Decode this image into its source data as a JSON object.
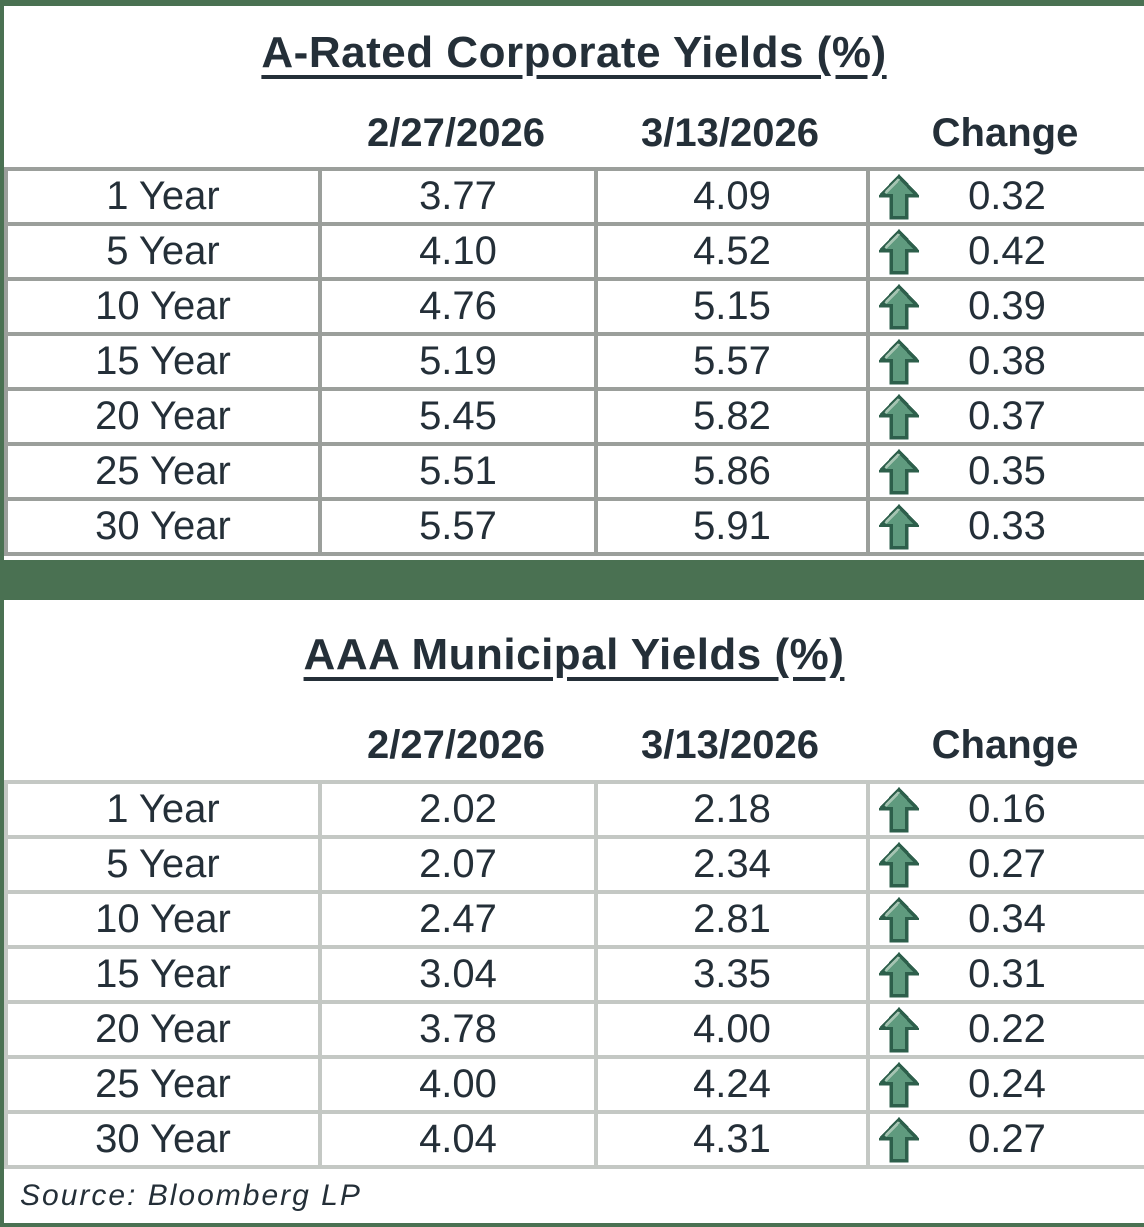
{
  "colors": {
    "accent_green": "#4a7152",
    "arrow_fill": "#5f9a7e",
    "arrow_outline": "#2d5f4b",
    "arrow_highlight": "#a5c4b2",
    "text": "#242f38",
    "table1_grid": "#9b9f9b",
    "table2_grid": "#c4c8c4"
  },
  "tables": [
    {
      "id": "corporate",
      "title": "A-Rated Corporate Yields (%)",
      "col_headers": [
        "2/27/2026",
        "3/13/2026",
        "Change"
      ],
      "rows": [
        {
          "label": "1 Year",
          "prev": "3.77",
          "curr": "4.09",
          "change": "0.32",
          "direction": "up"
        },
        {
          "label": "5 Year",
          "prev": "4.10",
          "curr": "4.52",
          "change": "0.42",
          "direction": "up"
        },
        {
          "label": "10 Year",
          "prev": "4.76",
          "curr": "5.15",
          "change": "0.39",
          "direction": "up"
        },
        {
          "label": "15 Year",
          "prev": "5.19",
          "curr": "5.57",
          "change": "0.38",
          "direction": "up"
        },
        {
          "label": "20 Year",
          "prev": "5.45",
          "curr": "5.82",
          "change": "0.37",
          "direction": "up"
        },
        {
          "label": "25 Year",
          "prev": "5.51",
          "curr": "5.86",
          "change": "0.35",
          "direction": "up"
        },
        {
          "label": "30 Year",
          "prev": "5.57",
          "curr": "5.91",
          "change": "0.33",
          "direction": "up"
        }
      ]
    },
    {
      "id": "municipal",
      "title": "AAA Municipal Yields (%)",
      "col_headers": [
        "2/27/2026",
        "3/13/2026",
        "Change"
      ],
      "rows": [
        {
          "label": "1 Year",
          "prev": "2.02",
          "curr": "2.18",
          "change": "0.16",
          "direction": "up"
        },
        {
          "label": "5 Year",
          "prev": "2.07",
          "curr": "2.34",
          "change": "0.27",
          "direction": "up"
        },
        {
          "label": "10 Year",
          "prev": "2.47",
          "curr": "2.81",
          "change": "0.34",
          "direction": "up"
        },
        {
          "label": "15 Year",
          "prev": "3.04",
          "curr": "3.35",
          "change": "0.31",
          "direction": "up"
        },
        {
          "label": "20 Year",
          "prev": "3.78",
          "curr": "4.00",
          "change": "0.22",
          "direction": "up"
        },
        {
          "label": "25 Year",
          "prev": "4.00",
          "curr": "4.24",
          "change": "0.24",
          "direction": "up"
        },
        {
          "label": "30 Year",
          "prev": "4.04",
          "curr": "4.31",
          "change": "0.27",
          "direction": "up"
        }
      ]
    }
  ],
  "footer": {
    "source": "Source: Bloomberg LP"
  }
}
